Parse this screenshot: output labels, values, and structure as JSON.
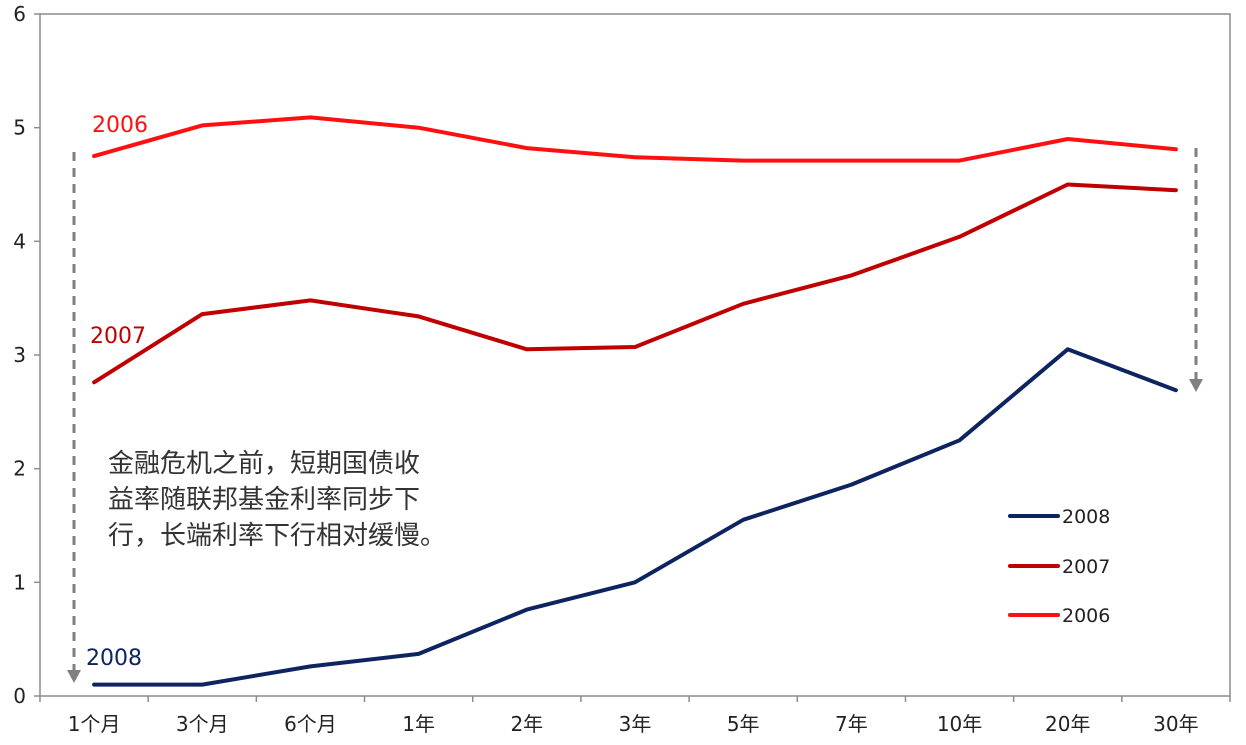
{
  "chart_data": {
    "type": "line",
    "title": "",
    "xlabel": "",
    "ylabel": "",
    "categories": [
      "1个月",
      "3个月",
      "6个月",
      "1年",
      "2年",
      "3年",
      "5年",
      "7年",
      "10年",
      "20年",
      "30年"
    ],
    "ylim": [
      0,
      6
    ],
    "yticks": [
      "0",
      "1",
      "2",
      "3",
      "4",
      "5",
      "6"
    ],
    "grid": false,
    "legend": "right",
    "series": [
      {
        "name": "2008",
        "color": "#0d2461",
        "values": [
          0.1,
          0.1,
          0.26,
          0.37,
          0.76,
          1.0,
          1.55,
          1.86,
          2.25,
          3.05,
          2.69
        ]
      },
      {
        "name": "2007",
        "color": "#c00000",
        "values": [
          2.76,
          3.36,
          3.48,
          3.34,
          3.05,
          3.07,
          3.45,
          3.7,
          4.04,
          4.5,
          4.45
        ]
      },
      {
        "name": "2006",
        "color": "#ff1010",
        "values": [
          4.75,
          5.02,
          5.09,
          5.0,
          4.82,
          4.74,
          4.71,
          4.71,
          4.71,
          4.9,
          4.81
        ]
      }
    ],
    "series_labels": [
      "2006",
      "2007",
      "2008"
    ],
    "annotation": [
      "金融危机之前，短期国债收",
      "益率随联邦基金利率同步下",
      "行，长端利率下行相对缓慢。"
    ]
  }
}
